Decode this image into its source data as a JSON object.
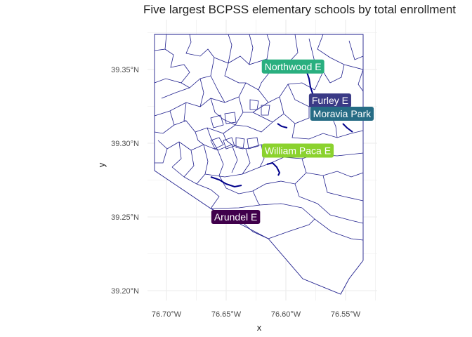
{
  "title": "Five largest BCPSS elementary schools by total enrollment",
  "axes": {
    "xlabel": "x",
    "ylabel": "y",
    "x_ticks": [
      {
        "value": -76.7,
        "label": "76.70°W"
      },
      {
        "value": -76.65,
        "label": "76.65°W"
      },
      {
        "value": -76.6,
        "label": "76.60°W"
      },
      {
        "value": -76.55,
        "label": "76.55°W"
      }
    ],
    "y_ticks": [
      {
        "value": 39.35,
        "label": "39.35°N"
      },
      {
        "value": 39.3,
        "label": "39.30°N"
      },
      {
        "value": 39.25,
        "label": "39.25°N"
      },
      {
        "value": 39.2,
        "label": "39.20°N"
      }
    ],
    "xlim": [
      -76.72,
      -76.525
    ],
    "ylim": [
      39.19,
      39.375
    ],
    "grid": true
  },
  "colors": {
    "boundary": "#1e1e8c",
    "water": "#00008b",
    "grid": "#ebebeb",
    "label_text": "#ffffff"
  },
  "schools": [
    {
      "name": "Northwood E",
      "lon": -76.594,
      "lat": 39.352,
      "color": "#29AF7F"
    },
    {
      "name": "Furley E",
      "lon": -76.563,
      "lat": 39.329,
      "color": "#3A3A86"
    },
    {
      "name": "Moravia Park",
      "lon": -76.553,
      "lat": 39.32,
      "color": "#266C85"
    },
    {
      "name": "William Paca E",
      "lon": -76.59,
      "lat": 39.295,
      "color": "#8BD22E"
    },
    {
      "name": "Arundel E",
      "lon": -76.642,
      "lat": 39.25,
      "color": "#40004B"
    }
  ]
}
